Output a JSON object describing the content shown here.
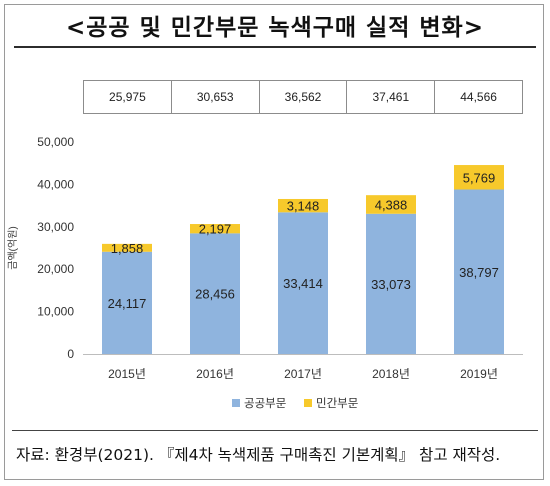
{
  "title": "<공공 및 민간부문 녹색구매 실적 변화>",
  "totals": [
    "25,975",
    "30,653",
    "36,562",
    "37,461",
    "44,566"
  ],
  "source": "자료: 환경부(2021). 『제4차 녹색제품 구매촉진 기본계획』 참고 재작성.",
  "chart_data": {
    "type": "bar",
    "stacked": true,
    "categories": [
      "2015년",
      "2016년",
      "2017년",
      "2018년",
      "2019년"
    ],
    "series": [
      {
        "name": "공공부문",
        "values": [
          24117,
          28456,
          33414,
          33073,
          38797
        ],
        "color": "#8fb4de"
      },
      {
        "name": "민간부문",
        "values": [
          1858,
          2197,
          3148,
          4388,
          5769
        ],
        "color": "#f7c92b"
      }
    ],
    "value_labels": [
      [
        "24,117",
        "28,456",
        "33,414",
        "33,073",
        "38,797"
      ],
      [
        "1,858",
        "2,197",
        "3,148",
        "4,388",
        "5,769"
      ]
    ],
    "ylabel": "금액(억원)",
    "ylim": [
      0,
      50000
    ],
    "yticks": [
      0,
      10000,
      20000,
      30000,
      40000,
      50000
    ],
    "ytick_labels": [
      "0",
      "10,000",
      "20,000",
      "30,000",
      "40,000",
      "50,000"
    ],
    "grid": false,
    "legend_position": "bottom"
  }
}
